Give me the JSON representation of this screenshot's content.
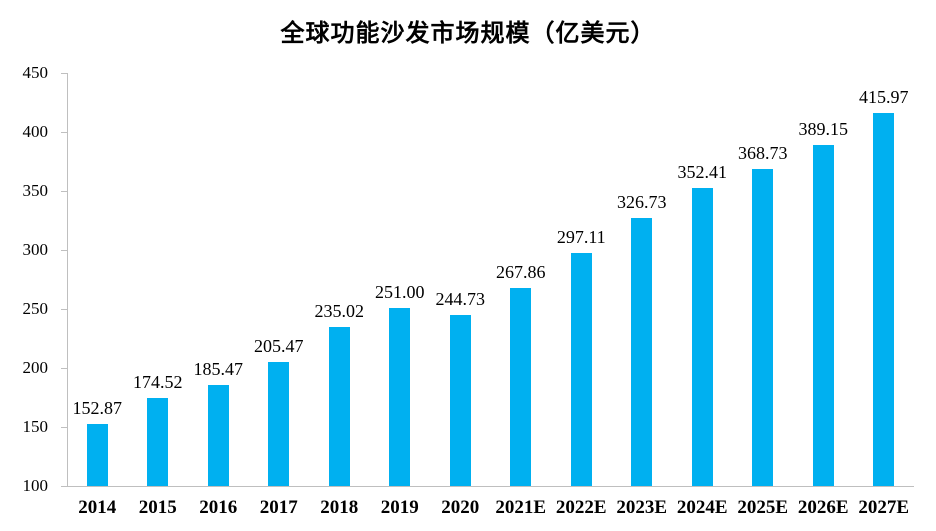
{
  "chart_data": {
    "type": "bar",
    "title": "全球功能沙发市场规模（亿美元）",
    "categories": [
      "2014",
      "2015",
      "2016",
      "2017",
      "2018",
      "2019",
      "2020",
      "2021E",
      "2022E",
      "2023E",
      "2024E",
      "2025E",
      "2026E",
      "2027E"
    ],
    "values": [
      152.87,
      174.52,
      185.47,
      205.47,
      235.02,
      251.0,
      244.73,
      267.86,
      297.11,
      326.73,
      352.41,
      368.73,
      389.15,
      415.97
    ],
    "value_labels": [
      "152.87",
      "174.52",
      "185.47",
      "205.47",
      "235.02",
      "251.00",
      "244.73",
      "267.86",
      "297.11",
      "326.73",
      "352.41",
      "368.73",
      "389.15",
      "415.97"
    ],
    "xlabel": "",
    "ylabel": "",
    "ylim": [
      100,
      450
    ],
    "yticks": [
      100,
      150,
      200,
      250,
      300,
      350,
      400,
      450
    ],
    "legend": "none",
    "grid": false,
    "colors": {
      "bar": "#00B0F0",
      "axis": "#BFBFBF",
      "text": "#000000",
      "background": "#FFFFFF"
    }
  }
}
